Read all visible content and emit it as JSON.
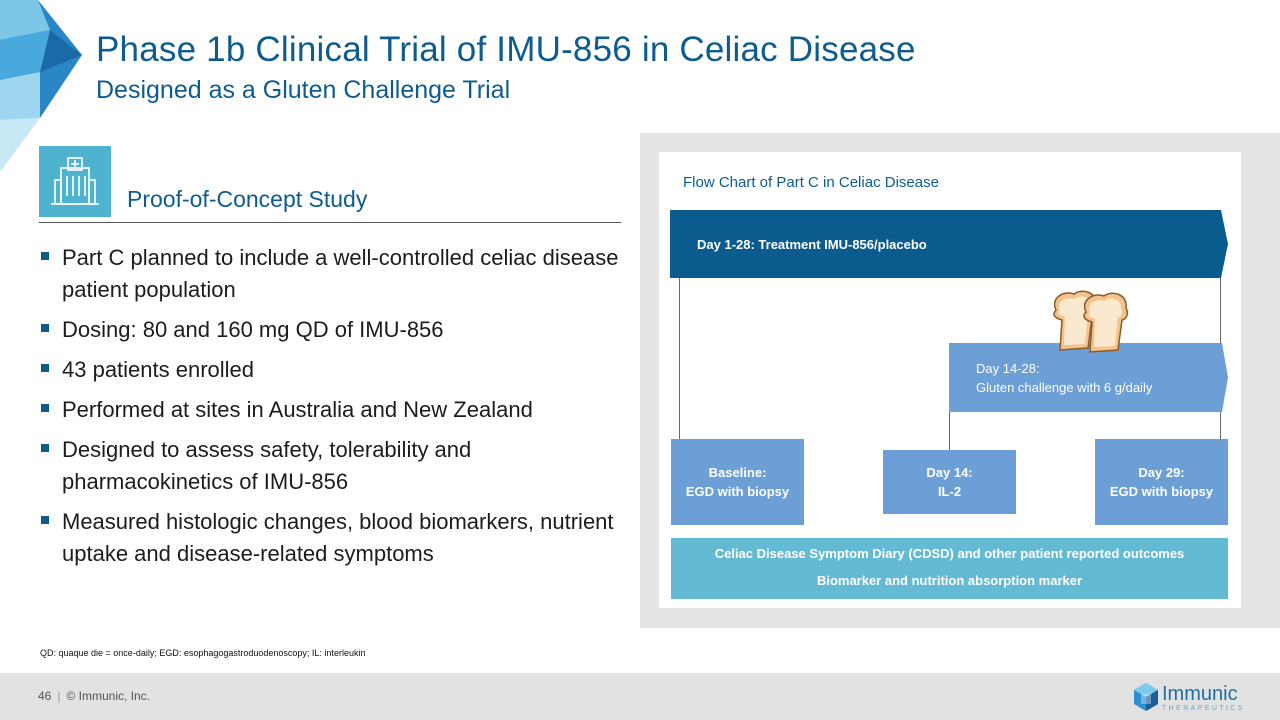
{
  "header": {
    "title": "Phase 1b Clinical Trial of IMU-856 in Celiac Disease",
    "subtitle": "Designed as a Gluten Challenge Trial"
  },
  "section": {
    "icon": "hospital-icon",
    "heading": "Proof-of-Concept Study"
  },
  "bullets": [
    "Part C planned to include a well-controlled celiac disease patient population",
    "Dosing: 80 and 160 mg QD of IMU-856",
    "43 patients enrolled",
    "Performed at sites in Australia and New Zealand",
    "Designed to assess safety, tolerability and pharmacokinetics of IMU-856",
    "Measured histologic changes, blood biomarkers, nutrient uptake and disease-related symptoms"
  ],
  "flowchart": {
    "title": "Flow Chart of Part C in Celiac Disease",
    "treatment": "Day 1-28: Treatment IMU-856/placebo",
    "gluten_line1": "Day 14-28:",
    "gluten_line2": "Gluten challenge with 6 g/daily",
    "gluten_icon": "bread-icon",
    "baseline_line1": "Baseline:",
    "baseline_line2": "EGD with biopsy",
    "day14_line1": "Day 14:",
    "day14_line2": "IL-2",
    "day29_line1": "Day 29:",
    "day29_line2": "EGD with biopsy",
    "outcomes_line1": "Celiac Disease Symptom Diary (CDSD) and other patient reported outcomes",
    "outcomes_line2": "Biomarker and nutrition absorption marker"
  },
  "footnote": "QD: quaque die = once-daily; EGD: esophagogastroduodenoscopy; IL: interleukin",
  "footer": {
    "page_number": "46",
    "copyright": "© Immunic, Inc.",
    "logo_name": "Immunic",
    "logo_sub": "THERAPEUTICS"
  },
  "colors": {
    "brand_blue": "#0e5c8f",
    "treatment_arrow": "#0c5b8f",
    "step_box": "#6b9fd6",
    "outcomes_bar": "#63bad2",
    "icon_tile": "#4fb2cf"
  }
}
